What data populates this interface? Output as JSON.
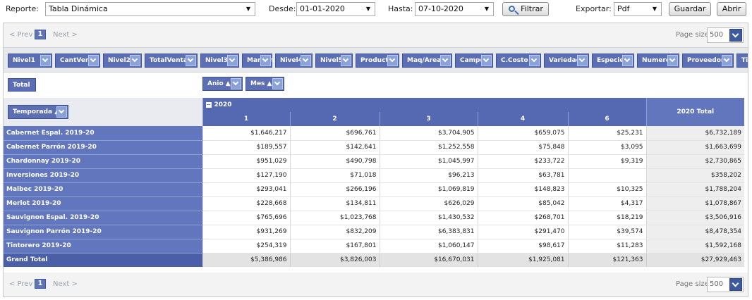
{
  "toolbar": {
    "reporte_label": "Reporte:",
    "reporte_value": "Tabla Dinámica",
    "desde_label": "Desde:",
    "desde_value": "01-01-2020",
    "hasta_label": "Hasta:",
    "hasta_value": "07-10-2020",
    "filtrar_label": "Filtrar",
    "exportar_label": "Exportar:",
    "exportar_value": "Pdf",
    "guardar_label": "Guardar",
    "abrir_label": "Abrir"
  },
  "pager": {
    "prev": "< Prev",
    "page": "1",
    "next": "Next >",
    "page_size_label": "Page size:",
    "page_size_value": "500"
  },
  "fields": [
    "Nivel1",
    "CantVen",
    "Nivel2",
    "TotalVenta",
    "Nivel3",
    "Margen",
    "Nivel4",
    "Nivel5",
    "Producto",
    "Maq/Areas",
    "Campo",
    "C.Costo",
    "Variedad",
    "Especie",
    "Numero",
    "Proveedor",
    "Tipo"
  ],
  "data_field": "Total",
  "column_fields": [
    "Anio ▲",
    "Mes ▲"
  ],
  "row_field": "Temporada ▲",
  "year_header": "2020",
  "collapse_symbol": "−",
  "month_headers": [
    "1",
    "2",
    "3",
    "4",
    "6"
  ],
  "total_header": "2020 Total",
  "rows": [
    {
      "label": "Cabernet Espal. 2019-20",
      "values": [
        "$1,646,217",
        "$696,761",
        "$3,704,905",
        "$659,075",
        "$25,231"
      ],
      "total": "$6,732,189"
    },
    {
      "label": "Cabernet Parrón 2019-20",
      "values": [
        "$189,557",
        "$142,641",
        "$1,252,558",
        "$75,848",
        "$3,095"
      ],
      "total": "$1,663,699"
    },
    {
      "label": "Chardonnay 2019-20",
      "values": [
        "$951,029",
        "$490,798",
        "$1,045,997",
        "$233,722",
        "$9,319"
      ],
      "total": "$2,730,865"
    },
    {
      "label": "Inversiones 2019-20",
      "values": [
        "$127,190",
        "$71,018",
        "$96,213",
        "$63,781",
        ""
      ],
      "total": "$358,202"
    },
    {
      "label": "Malbec 2019-20",
      "values": [
        "$293,041",
        "$266,196",
        "$1,069,819",
        "$148,823",
        "$10,325"
      ],
      "total": "$1,788,204"
    },
    {
      "label": "Merlot 2019-20",
      "values": [
        "$228,668",
        "$134,811",
        "$626,029",
        "$85,042",
        "$4,317"
      ],
      "total": "$1,078,867"
    },
    {
      "label": "Sauvignon Espal. 2019-20",
      "values": [
        "$765,696",
        "$1,023,768",
        "$1,430,532",
        "$268,701",
        "$18,219"
      ],
      "total": "$3,506,916"
    },
    {
      "label": "Sauvignon Parrón 2019-20",
      "values": [
        "$931,269",
        "$832,209",
        "$6,383,831",
        "$291,470",
        "$39,574"
      ],
      "total": "$8,478,354"
    },
    {
      "label": "Tintorero 2019-20",
      "values": [
        "$254,319",
        "$167,801",
        "$1,060,147",
        "$98,617",
        "$11,283"
      ],
      "total": "$1,592,168"
    }
  ],
  "grand_total": {
    "label": "Grand Total",
    "values": [
      "$5,386,986",
      "$3,826,003",
      "$16,670,031",
      "$1,925,081",
      "$121,363"
    ],
    "total": "$27,929,463"
  },
  "colors": {
    "header_blue": "#5c6fb5",
    "row_blue": "#6176bd",
    "grand_blue": "#4b5fa8"
  }
}
